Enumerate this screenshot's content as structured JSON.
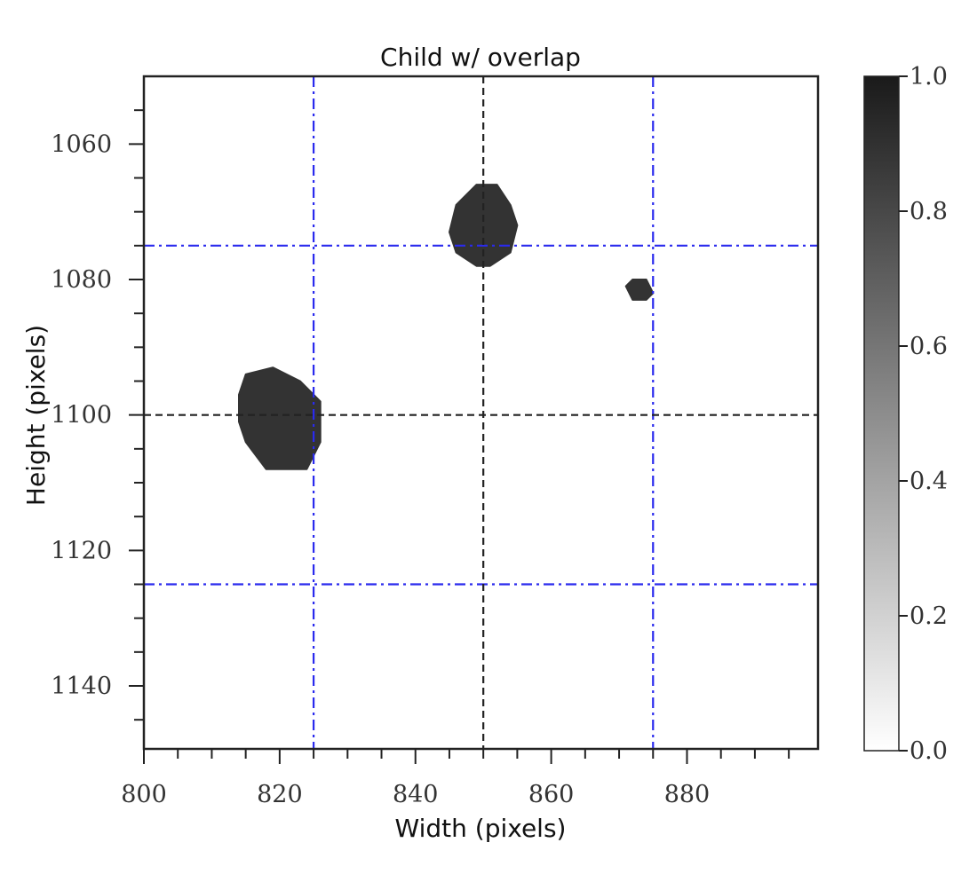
{
  "chart_data": {
    "type": "heatmap",
    "title": "Child w/ overlap",
    "xlabel": "Width (pixels)",
    "ylabel": "Height (pixels)",
    "xlim": [
      800,
      899
    ],
    "ylim": [
      1150,
      1050
    ],
    "y_inverted": true,
    "x_major_ticks": [
      800,
      820,
      840,
      860,
      880
    ],
    "x_tick_labels": [
      "800",
      "820",
      "840",
      "860",
      "880"
    ],
    "x_minor_step": 5,
    "y_major_ticks": [
      1060,
      1080,
      1100,
      1120,
      1140
    ],
    "y_tick_labels": [
      "1060",
      "1080",
      "1100",
      "1120",
      "1140"
    ],
    "y_minor_step": 5,
    "grid": false,
    "colormap": "gray_r",
    "colorbar": {
      "range": [
        0.0,
        1.0
      ],
      "ticks": [
        0.0,
        0.2,
        0.4,
        0.6,
        0.8,
        1.0
      ],
      "tick_labels": [
        "0.0",
        "0.2",
        "0.4",
        "0.6",
        "0.8",
        "1.0"
      ]
    },
    "blobs": [
      {
        "value": 0.8,
        "outline": [
          [
            845,
            1073
          ],
          [
            846,
            1069
          ],
          [
            849,
            1066
          ],
          [
            852,
            1066
          ],
          [
            854,
            1069
          ],
          [
            855,
            1072
          ],
          [
            854,
            1076
          ],
          [
            851,
            1078
          ],
          [
            849,
            1078
          ],
          [
            846,
            1076
          ]
        ]
      },
      {
        "value": 0.8,
        "outline": [
          [
            871,
            1081
          ],
          [
            872,
            1080
          ],
          [
            874,
            1080
          ],
          [
            875,
            1082
          ],
          [
            874,
            1083
          ],
          [
            872,
            1083
          ]
        ]
      },
      {
        "value": 0.8,
        "outline": [
          [
            815,
            1094
          ],
          [
            819,
            1093
          ],
          [
            823,
            1095
          ],
          [
            826,
            1098
          ],
          [
            826,
            1104
          ],
          [
            824,
            1108
          ],
          [
            818,
            1108
          ],
          [
            815,
            1104
          ],
          [
            814,
            1101
          ],
          [
            814,
            1097
          ]
        ]
      }
    ],
    "reference_lines": {
      "dashed_black": {
        "x": [
          850
        ],
        "y": [
          1100
        ],
        "color": "#222222"
      },
      "dashdot_blue": {
        "x": [
          825,
          875
        ],
        "y": [
          1075,
          1125
        ],
        "color": "#2a2aee"
      }
    }
  }
}
